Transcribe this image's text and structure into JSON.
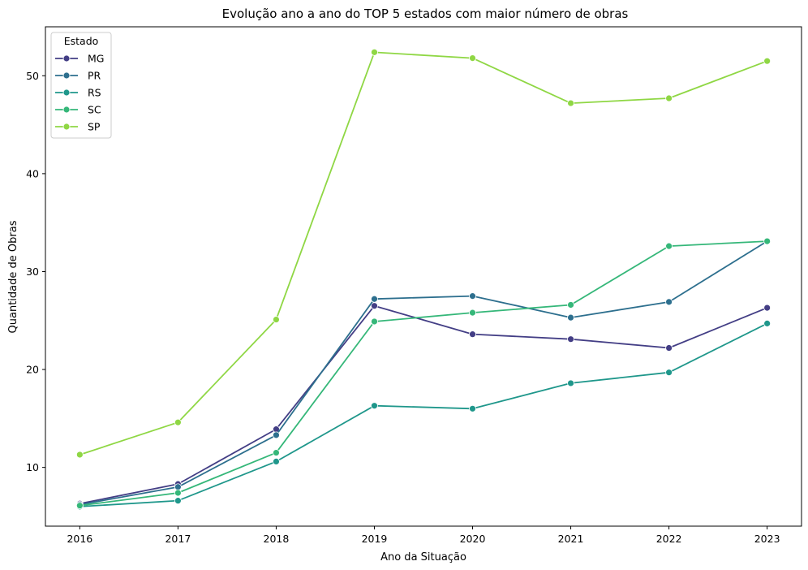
{
  "chart_data": {
    "type": "line",
    "title": "Evolução ano a ano do TOP 5 estados com maior número de obras",
    "xlabel": "Ano da Situação",
    "ylabel": "Quantidade de Obras",
    "x": [
      2016,
      2017,
      2018,
      2019,
      2020,
      2021,
      2022,
      2023
    ],
    "xlim": [
      2015.65,
      2023.35
    ],
    "ylim": [
      4,
      55
    ],
    "yticks": [
      10,
      20,
      30,
      40,
      50
    ],
    "grid": false,
    "legend": {
      "title": "Estado",
      "position": "top-left"
    },
    "series": [
      {
        "name": "MG",
        "color": "#433e85",
        "values": [
          6.3,
          8.3,
          13.9,
          26.5,
          23.6,
          23.1,
          22.2,
          26.3
        ]
      },
      {
        "name": "PR",
        "color": "#2d6f8e",
        "values": [
          6.2,
          8.0,
          13.3,
          27.2,
          27.5,
          25.3,
          26.9,
          33.1
        ]
      },
      {
        "name": "RS",
        "color": "#1f978b",
        "values": [
          6.0,
          6.6,
          10.6,
          16.3,
          16.0,
          18.6,
          19.7,
          24.7
        ]
      },
      {
        "name": "SC",
        "color": "#35b779",
        "values": [
          6.1,
          7.4,
          11.5,
          24.9,
          25.8,
          26.6,
          32.6,
          33.1
        ]
      },
      {
        "name": "SP",
        "color": "#8fd744",
        "values": [
          11.3,
          14.6,
          25.1,
          52.4,
          51.8,
          47.2,
          47.7,
          51.5
        ]
      }
    ]
  }
}
